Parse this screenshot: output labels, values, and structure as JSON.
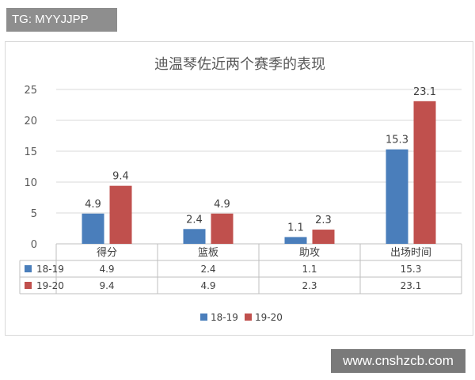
{
  "badge": {
    "text": "TG: MYYJJPP"
  },
  "watermark": {
    "text": "www.cnshzcb.com"
  },
  "chart_data": {
    "type": "bar",
    "title": "迪温琴佐近两个赛季的表现",
    "categories": [
      "得分",
      "篮板",
      "助攻",
      "出场时间"
    ],
    "series": [
      {
        "name": "18-19",
        "values": [
          4.9,
          2.4,
          1.1,
          15.3
        ],
        "labels": [
          "4.9",
          "2.4",
          "1.1",
          "15.3"
        ],
        "color": "#4a7ebb"
      },
      {
        "name": "19-20",
        "values": [
          9.4,
          4.9,
          2.3,
          23.1
        ],
        "labels": [
          "9.4",
          "4.9",
          "2.3",
          "23.1"
        ],
        "color": "#c0504d"
      }
    ],
    "ylim": [
      0,
      25
    ],
    "yticks": [
      0,
      5,
      10,
      15,
      20,
      25
    ],
    "grid": true,
    "legend": "bottom",
    "data_table": true
  }
}
